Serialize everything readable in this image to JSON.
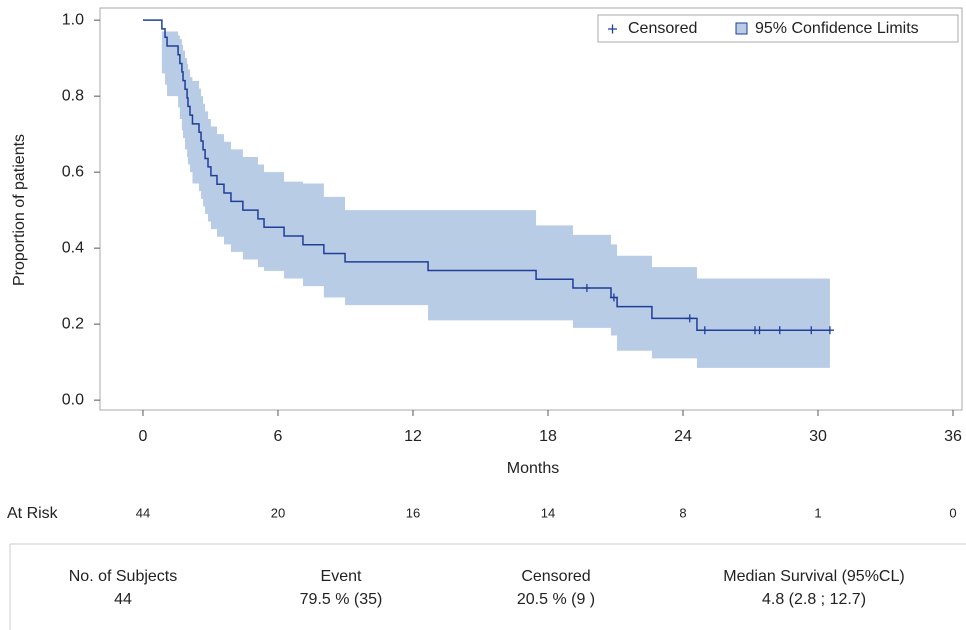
{
  "chart_data": {
    "type": "step",
    "xlabel": "Months",
    "ylabel": "Proportion of patients",
    "xlim": [
      -1.91,
      36.4
    ],
    "ylim": [
      -0.026,
      1.032
    ],
    "xticks": [
      0,
      6,
      12,
      18,
      24,
      30,
      36
    ],
    "yticks": [
      {
        "value": 0,
        "label": "0.0"
      },
      0.2,
      0.4,
      0.6,
      0.8,
      {
        "value": 1,
        "label": "1.0"
      }
    ],
    "line_color": "#1f3e98",
    "x": [
      0,
      0.84,
      0.98,
      1.07,
      1.56,
      1.64,
      1.73,
      1.78,
      1.87,
      1.96,
      2.0,
      2.09,
      2.2,
      2.49,
      2.58,
      2.67,
      2.76,
      2.89,
      3.02,
      3.29,
      3.6,
      3.91,
      4.44,
      5.11,
      5.38,
      6.27,
      7.11,
      8.04,
      8.98,
      12.67,
      17.47,
      19.11,
      20.8,
      21.07,
      22.62,
      24.62,
      30.53
    ],
    "survival": [
      1.0,
      0.977,
      0.955,
      0.932,
      0.909,
      0.886,
      0.864,
      0.841,
      0.818,
      0.795,
      0.773,
      0.75,
      0.727,
      0.705,
      0.682,
      0.659,
      0.636,
      0.614,
      0.591,
      0.568,
      0.545,
      0.523,
      0.5,
      0.477,
      0.455,
      0.432,
      0.409,
      0.386,
      0.364,
      0.341,
      0.318,
      0.295,
      0.27,
      0.246,
      0.215,
      0.184,
      0.184
    ],
    "band": {
      "name": "95% Confidence Limits",
      "color": "#b8cce6",
      "edge": "#1f3e98",
      "lower": [
        1.0,
        0.86,
        0.83,
        0.8,
        0.77,
        0.74,
        0.71,
        0.69,
        0.66,
        0.64,
        0.62,
        0.6,
        0.57,
        0.55,
        0.53,
        0.51,
        0.49,
        0.47,
        0.45,
        0.43,
        0.41,
        0.39,
        0.37,
        0.35,
        0.34,
        0.32,
        0.3,
        0.27,
        0.25,
        0.21,
        0.21,
        0.19,
        0.17,
        0.13,
        0.11,
        0.085,
        0.085
      ],
      "upper": [
        1.0,
        0.97,
        0.97,
        0.97,
        0.96,
        0.95,
        0.935,
        0.92,
        0.9,
        0.885,
        0.87,
        0.85,
        0.84,
        0.82,
        0.8,
        0.78,
        0.76,
        0.74,
        0.72,
        0.7,
        0.68,
        0.66,
        0.64,
        0.62,
        0.6,
        0.575,
        0.57,
        0.535,
        0.5,
        0.5,
        0.46,
        0.435,
        0.41,
        0.38,
        0.35,
        0.32,
        0.32
      ]
    },
    "censored": {
      "name": "Censored",
      "color": "#1f3e98",
      "x": [
        19.73,
        20.93,
        24.3,
        24.97,
        27.2,
        27.4,
        28.3,
        29.7,
        30.53
      ],
      "y": [
        0.295,
        0.27,
        0.215,
        0.184,
        0.184,
        0.184,
        0.184,
        0.184,
        0.184
      ]
    },
    "legend": "top-right",
    "at_risk": {
      "label": "At Risk",
      "values": [
        44,
        20,
        16,
        14,
        8,
        1,
        0
      ]
    }
  },
  "summary_table": {
    "headers": [
      "No. of Subjects",
      "Event",
      "Censored",
      "Median Survival (95%CL)"
    ],
    "values": [
      "44",
      "79.5 % (35)",
      "20.5 % (9 )",
      "4.8 (2.8 ; 12.7)"
    ]
  }
}
